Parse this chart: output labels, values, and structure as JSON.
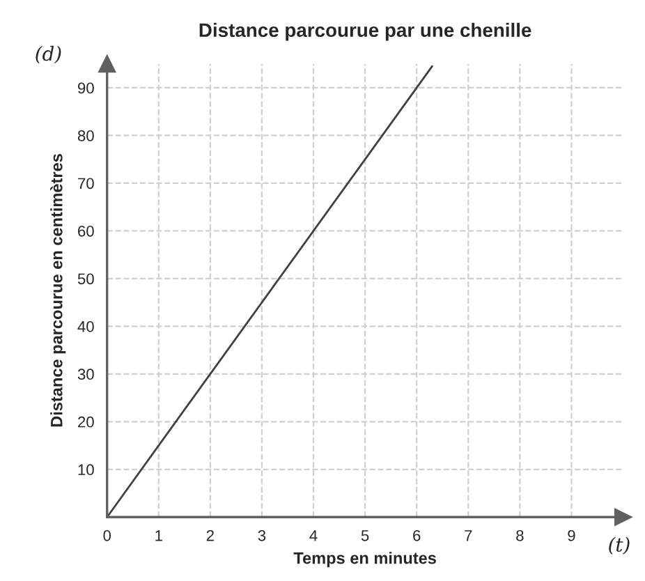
{
  "chart_data": {
    "type": "line",
    "title": "Distance parcourue par une chenille",
    "xlabel": "Temps en minutes",
    "ylabel": "Distance parcourue en centimètres",
    "annotations": [
      "(d)",
      "(t)"
    ],
    "x": [
      0,
      6.3
    ],
    "series": [
      {
        "color": "#404040",
        "values": [
          0,
          94.5
        ]
      }
    ],
    "xlim": [
      0,
      10
    ],
    "ylim": [
      0,
      95
    ],
    "xticks": [
      0,
      1,
      2,
      3,
      4,
      5,
      6,
      7,
      8,
      9
    ],
    "yticks": [
      10,
      20,
      30,
      40,
      50,
      60,
      70,
      80,
      90
    ],
    "grid": true,
    "marker": "none",
    "line_style": "solid",
    "legend": false
  }
}
